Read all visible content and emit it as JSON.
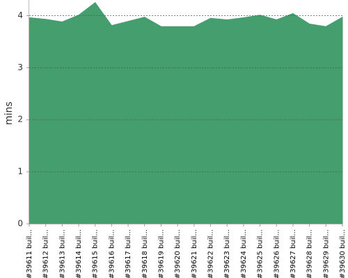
{
  "chart_data": {
    "type": "area",
    "y_label": "mins",
    "categories": [
      "#39611 buil...",
      "#39612 buil...",
      "#39613 buil...",
      "#39614 buil...",
      "#39615 buil...",
      "#39616 buil...",
      "#39617 buil...",
      "#39618 buil...",
      "#39619 buil...",
      "#39620 buil...",
      "#39621 buil...",
      "#39622 buil...",
      "#39623 buil...",
      "#39624 buil...",
      "#39625 buil...",
      "#39626 buil...",
      "#39627 buil...",
      "#39628 buil...",
      "#39629 buil...",
      "#39630 buil..."
    ],
    "values": [
      3.96,
      3.93,
      3.88,
      4.01,
      4.25,
      3.81,
      3.89,
      3.97,
      3.79,
      3.79,
      3.79,
      3.95,
      3.92,
      3.96,
      4.01,
      3.92,
      4.04,
      3.84,
      3.79,
      3.97
    ],
    "color": "#459e6e",
    "ylim": [
      0,
      4.3
    ],
    "yticks": [
      0,
      1,
      2,
      3,
      4
    ],
    "grid": true
  }
}
